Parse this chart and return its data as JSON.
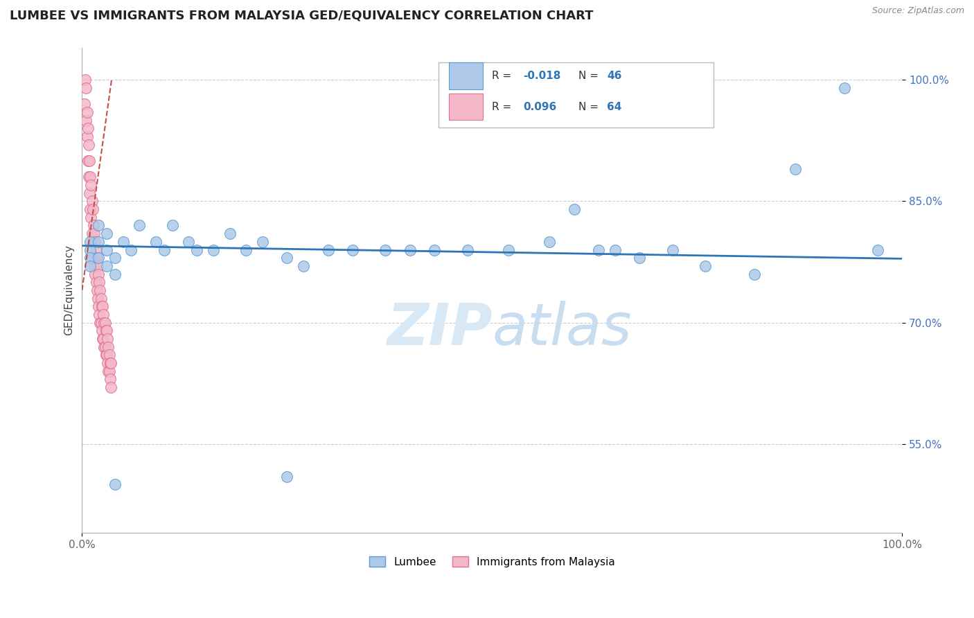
{
  "title": "LUMBEE VS IMMIGRANTS FROM MALAYSIA GED/EQUIVALENCY CORRELATION CHART",
  "source_text": "Source: ZipAtlas.com",
  "ylabel": "GED/Equivalency",
  "xlim": [
    0.0,
    1.0
  ],
  "ylim": [
    0.44,
    1.04
  ],
  "yticks": [
    0.55,
    0.7,
    0.85,
    1.0
  ],
  "ytick_labels": [
    "55.0%",
    "70.0%",
    "85.0%",
    "100.0%"
  ],
  "xtick_vals": [
    0.0,
    1.0
  ],
  "xtick_labels": [
    "0.0%",
    "100.0%"
  ],
  "legend_r_lumbee": "-0.018",
  "legend_n_lumbee": "46",
  "legend_r_malaysia": "0.096",
  "legend_n_malaysia": "64",
  "lumbee_color": "#aec9e8",
  "lumbee_edge_color": "#5b9bd5",
  "malaysia_color": "#f4b8c8",
  "malaysia_edge_color": "#e07090",
  "lumbee_line_color": "#2e75b6",
  "malaysia_line_color": "#c0504d",
  "watermark_color": "#d8e8f4",
  "ytick_color": "#4472c4",
  "title_color": "#222222",
  "source_color": "#888888",
  "grid_color": "#cccccc",
  "lumbee_x": [
    0.01,
    0.01,
    0.01,
    0.01,
    0.02,
    0.02,
    0.02,
    0.03,
    0.03,
    0.03,
    0.04,
    0.04,
    0.05,
    0.06,
    0.07,
    0.09,
    0.1,
    0.11,
    0.13,
    0.14,
    0.16,
    0.18,
    0.2,
    0.22,
    0.25,
    0.27,
    0.3,
    0.33,
    0.37,
    0.4,
    0.43,
    0.47,
    0.52,
    0.57,
    0.6,
    0.63,
    0.65,
    0.68,
    0.72,
    0.76,
    0.82,
    0.87,
    0.93,
    0.97,
    0.04,
    0.25
  ],
  "lumbee_y": [
    0.8,
    0.79,
    0.78,
    0.77,
    0.82,
    0.8,
    0.78,
    0.81,
    0.79,
    0.77,
    0.78,
    0.76,
    0.8,
    0.79,
    0.82,
    0.8,
    0.79,
    0.82,
    0.8,
    0.79,
    0.79,
    0.81,
    0.79,
    0.8,
    0.78,
    0.77,
    0.79,
    0.79,
    0.79,
    0.79,
    0.79,
    0.79,
    0.79,
    0.8,
    0.84,
    0.79,
    0.79,
    0.78,
    0.79,
    0.77,
    0.76,
    0.89,
    0.99,
    0.79,
    0.5,
    0.51
  ],
  "malaysia_x": [
    0.003,
    0.004,
    0.005,
    0.005,
    0.006,
    0.006,
    0.007,
    0.007,
    0.008,
    0.008,
    0.009,
    0.009,
    0.01,
    0.01,
    0.011,
    0.011,
    0.012,
    0.012,
    0.013,
    0.013,
    0.014,
    0.014,
    0.015,
    0.015,
    0.016,
    0.016,
    0.017,
    0.017,
    0.018,
    0.018,
    0.019,
    0.019,
    0.02,
    0.02,
    0.021,
    0.021,
    0.022,
    0.022,
    0.023,
    0.023,
    0.024,
    0.024,
    0.025,
    0.025,
    0.026,
    0.026,
    0.027,
    0.027,
    0.028,
    0.028,
    0.029,
    0.029,
    0.03,
    0.03,
    0.031,
    0.031,
    0.032,
    0.032,
    0.033,
    0.033,
    0.034,
    0.034,
    0.035,
    0.035
  ],
  "malaysia_y": [
    0.97,
    1.0,
    0.95,
    0.99,
    0.93,
    0.96,
    0.9,
    0.94,
    0.88,
    0.92,
    0.86,
    0.9,
    0.84,
    0.88,
    0.83,
    0.87,
    0.81,
    0.85,
    0.8,
    0.84,
    0.78,
    0.82,
    0.77,
    0.81,
    0.76,
    0.8,
    0.75,
    0.79,
    0.74,
    0.78,
    0.73,
    0.77,
    0.72,
    0.76,
    0.71,
    0.75,
    0.7,
    0.74,
    0.7,
    0.73,
    0.69,
    0.72,
    0.68,
    0.72,
    0.68,
    0.71,
    0.67,
    0.7,
    0.67,
    0.7,
    0.66,
    0.69,
    0.66,
    0.69,
    0.65,
    0.68,
    0.64,
    0.67,
    0.64,
    0.66,
    0.63,
    0.65,
    0.62,
    0.65
  ],
  "lumbee_trend_x": [
    0.0,
    1.0
  ],
  "lumbee_trend_y": [
    0.795,
    0.779
  ],
  "malaysia_trend_x": [
    0.0,
    0.036
  ],
  "malaysia_trend_y": [
    0.74,
    1.0
  ]
}
